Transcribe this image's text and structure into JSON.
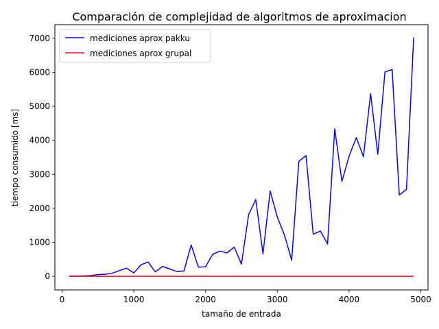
{
  "chart_data": {
    "type": "line",
    "title": "Comparación de complejidad de algoritmos de aproximacion",
    "xlabel": "tamaño de entrada",
    "ylabel": "tiempo consumido [ms]",
    "xlim": [
      -100,
      5100
    ],
    "ylim": [
      -400,
      7400
    ],
    "xticks": [
      0,
      1000,
      2000,
      3000,
      4000,
      5000
    ],
    "yticks": [
      0,
      1000,
      2000,
      3000,
      4000,
      5000,
      6000,
      7000
    ],
    "grid": false,
    "legend_position": "top-left",
    "series": [
      {
        "name": "mediciones aprox pakku",
        "color": "#0000ff",
        "x": [
          100,
          200,
          300,
          400,
          500,
          600,
          700,
          800,
          900,
          1000,
          1100,
          1200,
          1300,
          1400,
          1500,
          1600,
          1700,
          1800,
          1900,
          2000,
          2100,
          2200,
          2300,
          2400,
          2500,
          2600,
          2700,
          2800,
          2900,
          3000,
          3100,
          3200,
          3300,
          3400,
          3500,
          3600,
          3700,
          3800,
          3900,
          4000,
          4100,
          4200,
          4300,
          4400,
          4500,
          4600,
          4700,
          4800,
          4900
        ],
        "y": [
          2,
          5,
          10,
          20,
          50,
          60,
          90,
          170,
          240,
          100,
          340,
          420,
          130,
          290,
          220,
          140,
          160,
          920,
          270,
          280,
          650,
          740,
          690,
          860,
          360,
          1810,
          2260,
          660,
          2510,
          1740,
          1210,
          470,
          3380,
          3550,
          1240,
          1330,
          950,
          4340,
          2790,
          3530,
          4080,
          3520,
          5370,
          3590,
          6010,
          6080,
          2390,
          2560,
          7020
        ]
      },
      {
        "name": "mediciones aprox grupal",
        "color": "#ff0000",
        "x": [
          100,
          200,
          300,
          400,
          500,
          600,
          700,
          800,
          900,
          1000,
          1100,
          1200,
          1300,
          1400,
          1500,
          1600,
          1700,
          1800,
          1900,
          2000,
          2100,
          2200,
          2300,
          2400,
          2500,
          2600,
          2700,
          2800,
          2900,
          3000,
          3100,
          3200,
          3300,
          3400,
          3500,
          3600,
          3700,
          3800,
          3900,
          4000,
          4100,
          4200,
          4300,
          4400,
          4500,
          4600,
          4700,
          4800,
          4900
        ],
        "y": [
          0,
          0,
          0,
          0,
          0,
          0,
          0,
          0,
          0,
          0,
          0,
          0,
          0,
          0,
          0,
          0,
          0,
          0,
          0,
          0,
          0,
          0,
          0,
          0,
          0,
          0,
          0,
          0,
          0,
          0,
          0,
          0,
          0,
          0,
          0,
          0,
          0,
          0,
          0,
          0,
          0,
          0,
          0,
          0,
          0,
          0,
          0,
          0,
          0
        ]
      }
    ]
  }
}
